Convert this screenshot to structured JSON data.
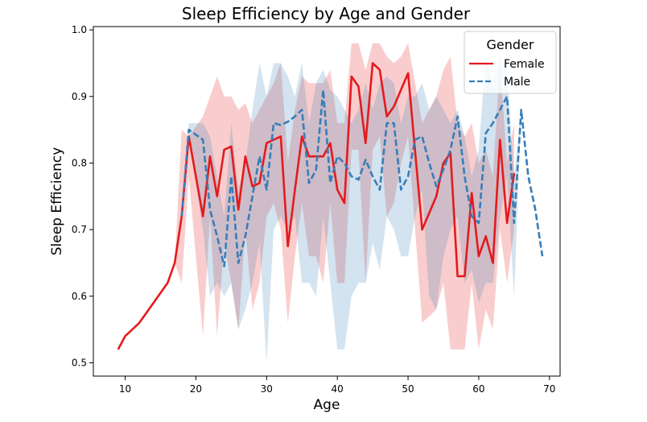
{
  "chart_data": {
    "type": "line",
    "title": "Sleep Efficiency by Age and Gender",
    "xlabel": "Age",
    "ylabel": "Sleep Efficiency",
    "xlim": [
      5.5,
      71.5
    ],
    "ylim": [
      0.48,
      1.005
    ],
    "xticks": [
      10,
      20,
      30,
      40,
      50,
      60,
      70
    ],
    "yticks": [
      0.5,
      0.6,
      0.7,
      0.8,
      0.9,
      1.0
    ],
    "xtick_labels": [
      "10",
      "20",
      "30",
      "40",
      "50",
      "60",
      "70"
    ],
    "ytick_labels": [
      "0.5",
      "0.6",
      "0.7",
      "0.8",
      "0.9",
      "1.0"
    ],
    "legend": {
      "title": "Gender",
      "position": "top-right"
    },
    "series": [
      {
        "name": "Female",
        "color": "#e41a1c",
        "style": "solid",
        "x": [
          9,
          10,
          12,
          14,
          16,
          17,
          18,
          19,
          21,
          22,
          23,
          24,
          25,
          26,
          27,
          28,
          29,
          30,
          31,
          32,
          33,
          34,
          35,
          36,
          37,
          38,
          39,
          40,
          41,
          42,
          43,
          44,
          45,
          46,
          47,
          48,
          49,
          50,
          52,
          54,
          55,
          56,
          57,
          58,
          59,
          60,
          61,
          62,
          63,
          64,
          65
        ],
        "y": [
          0.52,
          0.54,
          0.56,
          0.59,
          0.62,
          0.65,
          0.72,
          0.84,
          0.72,
          0.81,
          0.75,
          0.82,
          0.825,
          0.73,
          0.81,
          0.765,
          0.77,
          0.83,
          0.835,
          0.84,
          0.675,
          0.76,
          0.84,
          0.81,
          0.81,
          0.81,
          0.83,
          0.76,
          0.74,
          0.93,
          0.915,
          0.83,
          0.95,
          0.94,
          0.87,
          0.885,
          0.91,
          0.935,
          0.7,
          0.75,
          0.8,
          0.815,
          0.63,
          0.63,
          0.755,
          0.66,
          0.69,
          0.65,
          0.835,
          0.71,
          0.785
        ],
        "ci_low": [
          0.52,
          0.54,
          0.56,
          0.59,
          0.62,
          0.65,
          0.62,
          0.78,
          0.54,
          0.72,
          0.54,
          0.68,
          0.62,
          0.55,
          0.7,
          0.58,
          0.62,
          0.72,
          0.74,
          0.7,
          0.56,
          0.66,
          0.74,
          0.66,
          0.66,
          0.62,
          0.74,
          0.62,
          0.62,
          0.82,
          0.82,
          0.62,
          0.82,
          0.84,
          0.72,
          0.74,
          0.8,
          0.84,
          0.56,
          0.58,
          0.62,
          0.52,
          0.52,
          0.52,
          0.62,
          0.52,
          0.58,
          0.55,
          0.7,
          0.62,
          0.7
        ],
        "ci_high": [
          0.52,
          0.54,
          0.56,
          0.59,
          0.62,
          0.65,
          0.85,
          0.84,
          0.87,
          0.9,
          0.93,
          0.9,
          0.9,
          0.88,
          0.89,
          0.86,
          0.88,
          0.9,
          0.92,
          0.95,
          0.8,
          0.88,
          0.93,
          0.92,
          0.92,
          0.92,
          0.94,
          0.86,
          0.86,
          0.98,
          0.98,
          0.94,
          0.98,
          0.98,
          0.96,
          0.95,
          0.96,
          0.98,
          0.86,
          0.9,
          0.94,
          0.96,
          0.86,
          0.84,
          0.86,
          0.8,
          0.82,
          0.78,
          0.95,
          0.8,
          0.86
        ]
      },
      {
        "name": "Male",
        "color": "#377eb8",
        "style": "dashed",
        "x": [
          18,
          19,
          21,
          22,
          23,
          24,
          25,
          26,
          27,
          28,
          29,
          30,
          31,
          32,
          33,
          34,
          35,
          36,
          37,
          38,
          39,
          40,
          41,
          42,
          43,
          44,
          45,
          46,
          47,
          48,
          49,
          50,
          51,
          52,
          53,
          54,
          55,
          56,
          57,
          58,
          59,
          60,
          61,
          62,
          63,
          64,
          65,
          66,
          67,
          68,
          69
        ],
        "y": [
          0.72,
          0.85,
          0.835,
          0.73,
          0.69,
          0.645,
          0.78,
          0.65,
          0.69,
          0.75,
          0.81,
          0.76,
          0.86,
          0.857,
          0.862,
          0.87,
          0.88,
          0.77,
          0.79,
          0.91,
          0.77,
          0.81,
          0.8,
          0.78,
          0.775,
          0.805,
          0.78,
          0.76,
          0.86,
          0.86,
          0.76,
          0.78,
          0.835,
          0.84,
          0.8,
          0.765,
          0.79,
          0.82,
          0.87,
          0.78,
          0.72,
          0.71,
          0.845,
          0.86,
          0.88,
          0.9,
          0.71,
          0.88,
          0.78,
          0.73,
          0.66
        ],
        "ci_low": [
          0.72,
          0.84,
          0.7,
          0.6,
          0.62,
          0.6,
          0.62,
          0.55,
          0.58,
          0.62,
          0.68,
          0.5,
          0.7,
          0.72,
          0.7,
          0.72,
          0.62,
          0.62,
          0.6,
          0.72,
          0.62,
          0.52,
          0.52,
          0.6,
          0.62,
          0.62,
          0.68,
          0.64,
          0.72,
          0.7,
          0.66,
          0.66,
          0.72,
          0.76,
          0.6,
          0.58,
          0.66,
          0.7,
          0.72,
          0.62,
          0.64,
          0.59,
          0.62,
          0.62,
          0.72,
          0.78,
          0.6,
          0.88,
          0.78,
          0.73,
          0.66
        ],
        "ci_high": [
          0.72,
          0.86,
          0.86,
          0.84,
          0.78,
          0.72,
          0.86,
          0.76,
          0.8,
          0.88,
          0.95,
          0.9,
          0.95,
          0.95,
          0.93,
          0.9,
          0.95,
          0.86,
          0.92,
          0.94,
          0.91,
          0.9,
          0.88,
          0.86,
          0.88,
          0.92,
          0.88,
          0.92,
          0.93,
          0.92,
          0.86,
          0.9,
          0.9,
          0.92,
          0.88,
          0.9,
          0.88,
          0.86,
          0.88,
          0.84,
          0.78,
          0.82,
          0.96,
          0.92,
          0.96,
          0.94,
          0.78,
          0.88,
          0.78,
          0.73,
          0.66
        ]
      }
    ]
  }
}
